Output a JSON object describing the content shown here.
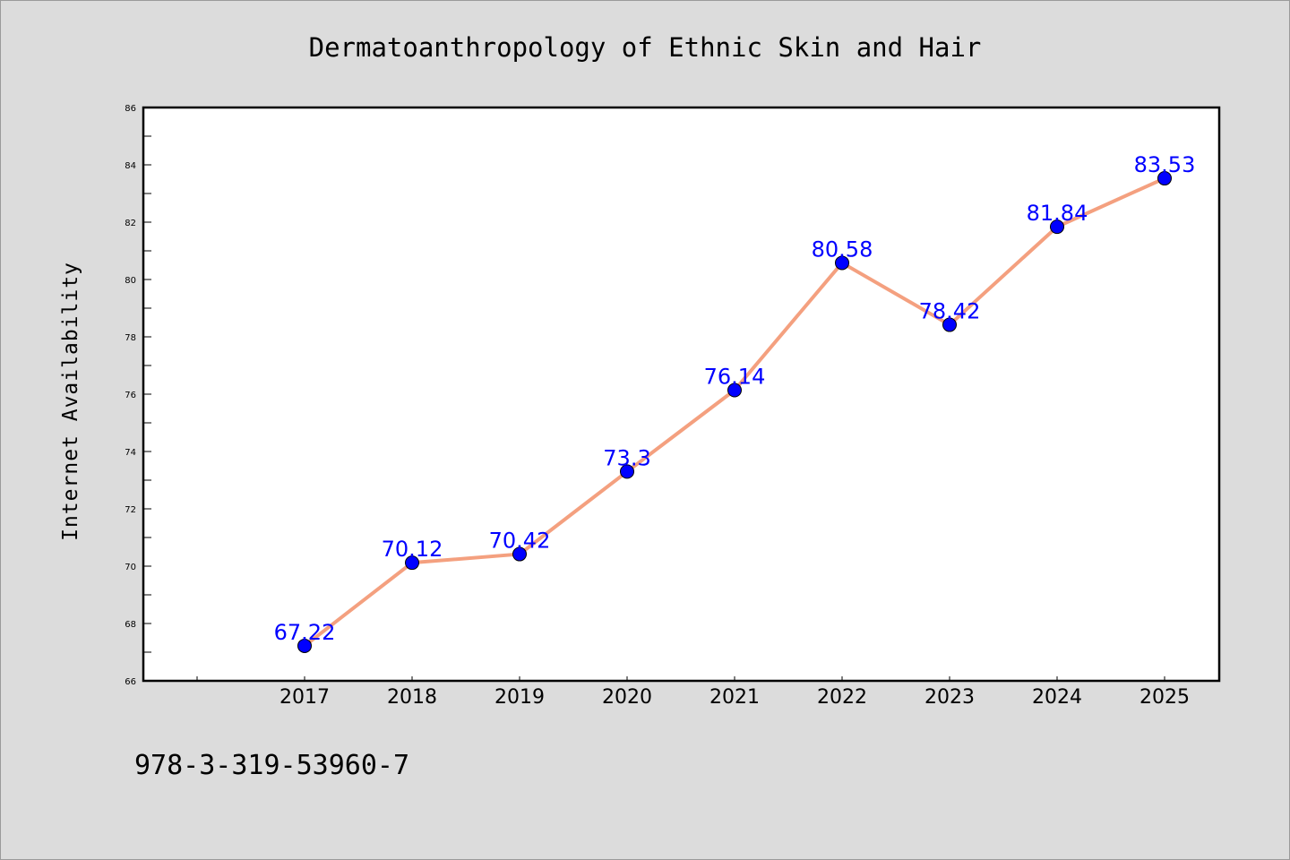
{
  "chart_data": {
    "type": "line",
    "title": "Dermatoanthropology of Ethnic Skin and Hair",
    "xlabel": "",
    "ylabel": "Internet Availability",
    "categories": [
      "2017",
      "2018",
      "2019",
      "2020",
      "2021",
      "2022",
      "2023",
      "2024",
      "2025"
    ],
    "series": [
      {
        "values": [
          67.22,
          70.12,
          70.42,
          73.3,
          76.14,
          80.58,
          78.42,
          81.84,
          83.53
        ],
        "labels": [
          "67.22",
          "70.12",
          "70.42",
          "73.3",
          "76.14",
          "80.58",
          "78.42",
          "81.84",
          "83.53"
        ],
        "line_color": "#f4a07f",
        "marker_color": "#0000ff"
      }
    ],
    "ylim": [
      66,
      86
    ],
    "yticks": [
      "66",
      "68",
      "70",
      "72",
      "74",
      "76",
      "78",
      "80",
      "82",
      "84",
      "86"
    ],
    "grid": false,
    "legend": "none"
  },
  "footer": {
    "isbn": "978-3-319-53960-7"
  },
  "colors": {
    "background": "#dcdcdc",
    "plot_area": "#ffffff",
    "label_color": "#0000ff"
  }
}
